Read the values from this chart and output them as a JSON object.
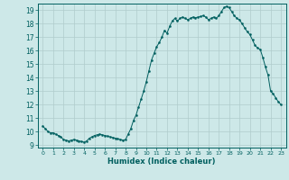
{
  "title": "",
  "xlabel": "Humidex (Indice chaleur)",
  "ylabel": "",
  "background_color": "#cde8e8",
  "line_color": "#005f5f",
  "marker_color": "#005f5f",
  "grid_color": "#b0cccc",
  "ylim": [
    8.8,
    19.5
  ],
  "xlim": [
    -0.5,
    23.5
  ],
  "yticks": [
    9,
    10,
    11,
    12,
    13,
    14,
    15,
    16,
    17,
    18,
    19
  ],
  "xticks": [
    0,
    1,
    2,
    3,
    4,
    5,
    6,
    7,
    8,
    9,
    10,
    11,
    12,
    13,
    14,
    15,
    16,
    17,
    18,
    19,
    20,
    21,
    22,
    23
  ],
  "x": [
    0,
    0.25,
    0.5,
    0.75,
    1,
    1.25,
    1.5,
    1.75,
    2,
    2.25,
    2.5,
    2.75,
    3,
    3.25,
    3.5,
    3.75,
    4,
    4.25,
    4.5,
    4.75,
    5,
    5.25,
    5.5,
    5.75,
    6,
    6.25,
    6.5,
    6.75,
    7,
    7.25,
    7.5,
    7.75,
    8,
    8.25,
    8.5,
    8.75,
    9,
    9.25,
    9.5,
    9.75,
    10,
    10.25,
    10.5,
    10.75,
    11,
    11.25,
    11.5,
    11.75,
    12,
    12.25,
    12.5,
    12.75,
    13,
    13.25,
    13.5,
    13.75,
    14,
    14.25,
    14.5,
    14.75,
    15,
    15.25,
    15.5,
    15.75,
    16,
    16.25,
    16.5,
    16.75,
    17,
    17.25,
    17.5,
    17.75,
    18,
    18.25,
    18.5,
    18.75,
    19,
    19.25,
    19.5,
    19.75,
    20,
    20.25,
    20.5,
    20.75,
    21,
    21.25,
    21.5,
    21.75,
    22,
    22.25,
    22.5,
    22.75,
    23
  ],
  "y": [
    10.4,
    10.2,
    10.0,
    9.9,
    9.9,
    9.8,
    9.7,
    9.6,
    9.4,
    9.35,
    9.3,
    9.35,
    9.4,
    9.35,
    9.3,
    9.25,
    9.2,
    9.3,
    9.5,
    9.6,
    9.7,
    9.75,
    9.8,
    9.75,
    9.7,
    9.65,
    9.6,
    9.55,
    9.5,
    9.45,
    9.4,
    9.35,
    9.4,
    9.8,
    10.2,
    10.8,
    11.2,
    11.8,
    12.4,
    13.0,
    13.7,
    14.5,
    15.3,
    15.8,
    16.3,
    16.6,
    17.0,
    17.5,
    17.3,
    17.8,
    18.2,
    18.4,
    18.2,
    18.4,
    18.5,
    18.4,
    18.3,
    18.4,
    18.5,
    18.45,
    18.5,
    18.55,
    18.6,
    18.5,
    18.3,
    18.4,
    18.5,
    18.4,
    18.6,
    18.9,
    19.2,
    19.3,
    19.2,
    18.9,
    18.6,
    18.4,
    18.3,
    18.0,
    17.7,
    17.4,
    17.2,
    16.8,
    16.4,
    16.2,
    16.1,
    15.5,
    14.8,
    14.2,
    13.0,
    12.8,
    12.5,
    12.2,
    12.0
  ]
}
